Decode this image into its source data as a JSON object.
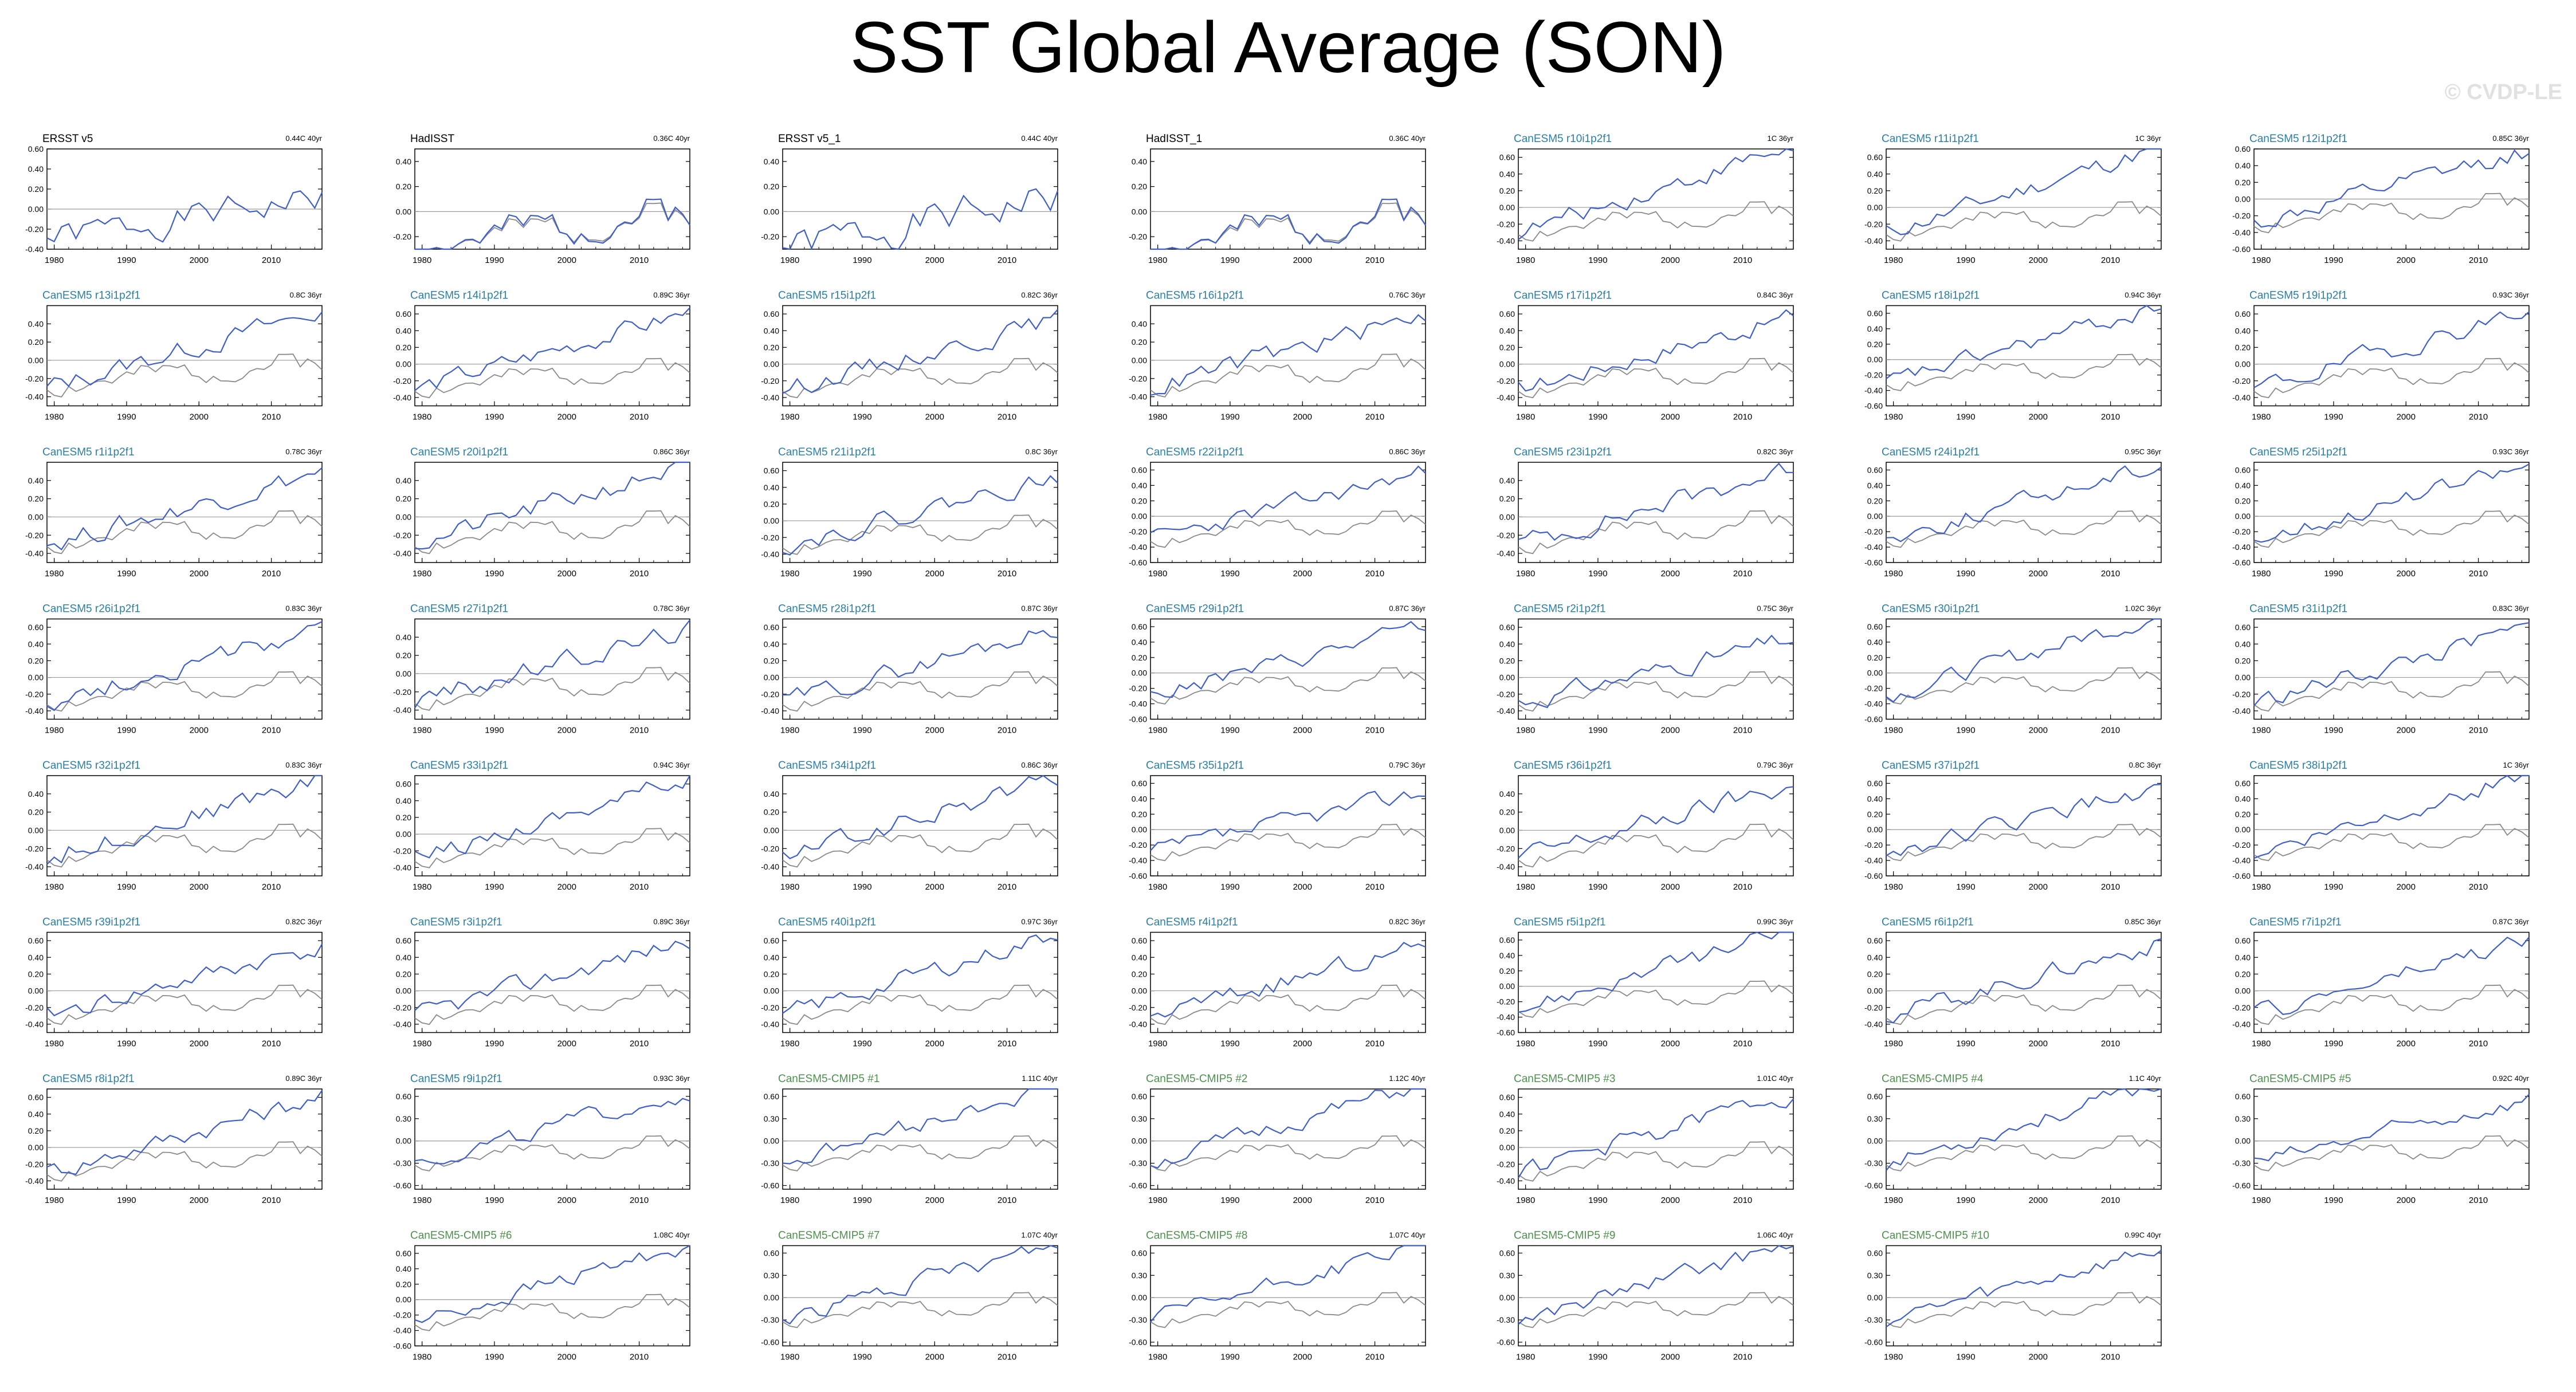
{
  "title": "SST Global Average (SON)",
  "watermark": "© CVDP-LE",
  "colors": {
    "model": "#3f5fc8",
    "obs": "#8a8a8a",
    "zero": "#9a9a9a",
    "title_obs": "#000000",
    "title_le": "#2c7fa4",
    "title_cmip5": "#4f8f4f",
    "axis": "#000000"
  },
  "chart_data": {
    "type": "line",
    "x_ticks": [
      1980,
      1990,
      2000,
      2010
    ],
    "xlim": [
      1979,
      2017
    ],
    "panels": [
      {
        "name": "ERSST v5",
        "trend": "0.44C 40yr",
        "group": "obs",
        "yticks": [
          "0.60",
          "0.40",
          "0.20",
          "0.00",
          "-0.20",
          "-0.40"
        ],
        "ylim": [
          -0.4,
          0.6
        ],
        "seed": 1,
        "slope": 0.011
      },
      {
        "name": "HadISST",
        "trend": "0.36C 40yr",
        "group": "obs",
        "yticks": [
          "0.40",
          "0.20",
          "0.00",
          "-0.20"
        ],
        "ylim": [
          -0.3,
          0.5
        ],
        "seed": 2,
        "slope": 0.009
      },
      {
        "name": "ERSST v5_1",
        "trend": "0.44C 40yr",
        "group": "obs",
        "yticks": [
          "0.40",
          "0.20",
          "0.00",
          "-0.20"
        ],
        "ylim": [
          -0.3,
          0.5
        ],
        "seed": 1,
        "slope": 0.011
      },
      {
        "name": "HadISST_1",
        "trend": "0.36C 40yr",
        "group": "obs",
        "yticks": [
          "0.40",
          "0.20",
          "0.00",
          "-0.20"
        ],
        "ylim": [
          -0.3,
          0.5
        ],
        "seed": 2,
        "slope": 0.009
      },
      {
        "name": "CanESM5 r10i1p2f1",
        "trend": "1C 36yr",
        "group": "le",
        "yticks": [
          "0.60",
          "0.40",
          "0.20",
          "0.00",
          "-0.20",
          "-0.40"
        ],
        "ylim": [
          -0.5,
          0.7
        ],
        "seed": 10,
        "slope": 0.027
      },
      {
        "name": "CanESM5 r11i1p2f1",
        "trend": "1C 36yr",
        "group": "le",
        "yticks": [
          "0.60",
          "0.40",
          "0.20",
          "0.00",
          "-0.20",
          "-0.40"
        ],
        "ylim": [
          -0.5,
          0.7
        ],
        "seed": 11,
        "slope": 0.027
      },
      {
        "name": "CanESM5 r12i1p2f1",
        "trend": "0.85C 36yr",
        "group": "le",
        "yticks": [
          "0.60",
          "0.40",
          "0.20",
          "0.00",
          "-0.20",
          "-0.40",
          "-0.60"
        ],
        "ylim": [
          -0.6,
          0.6
        ],
        "seed": 12,
        "slope": 0.023
      },
      {
        "name": "CanESM5 r13i1p2f1",
        "trend": "0.8C 36yr",
        "group": "le",
        "yticks": [
          "0.40",
          "0.20",
          "0.00",
          "-0.20",
          "-0.40"
        ],
        "ylim": [
          -0.5,
          0.6
        ],
        "seed": 13,
        "slope": 0.022
      },
      {
        "name": "CanESM5 r14i1p2f1",
        "trend": "0.89C 36yr",
        "group": "le",
        "yticks": [
          "0.60",
          "0.40",
          "0.20",
          "0.00",
          "-0.20",
          "-0.40"
        ],
        "ylim": [
          -0.5,
          0.7
        ],
        "seed": 14,
        "slope": 0.024
      },
      {
        "name": "CanESM5 r15i1p2f1",
        "trend": "0.82C 36yr",
        "group": "le",
        "yticks": [
          "0.60",
          "0.40",
          "0.20",
          "0.00",
          "-0.20",
          "-0.40"
        ],
        "ylim": [
          -0.5,
          0.7
        ],
        "seed": 15,
        "slope": 0.022
      },
      {
        "name": "CanESM5 r16i1p2f1",
        "trend": "0.76C 36yr",
        "group": "le",
        "yticks": [
          "0.40",
          "0.20",
          "0.00",
          "-0.20",
          "-0.40"
        ],
        "ylim": [
          -0.5,
          0.6
        ],
        "seed": 16,
        "slope": 0.021
      },
      {
        "name": "CanESM5 r17i1p2f1",
        "trend": "0.84C 36yr",
        "group": "le",
        "yticks": [
          "0.60",
          "0.40",
          "0.20",
          "0.00",
          "-0.20",
          "-0.40"
        ],
        "ylim": [
          -0.5,
          0.7
        ],
        "seed": 17,
        "slope": 0.023
      },
      {
        "name": "CanESM5 r18i1p2f1",
        "trend": "0.94C 36yr",
        "group": "le",
        "yticks": [
          "0.60",
          "0.40",
          "0.20",
          "0.00",
          "-0.20",
          "-0.40",
          "-0.60"
        ],
        "ylim": [
          -0.6,
          0.7
        ],
        "seed": 18,
        "slope": 0.026
      },
      {
        "name": "CanESM5 r19i1p2f1",
        "trend": "0.93C 36yr",
        "group": "le",
        "yticks": [
          "0.60",
          "0.40",
          "0.20",
          "0.00",
          "-0.20",
          "-0.40"
        ],
        "ylim": [
          -0.5,
          0.7
        ],
        "seed": 19,
        "slope": 0.025
      },
      {
        "name": "CanESM5 r1i1p2f1",
        "trend": "0.78C 36yr",
        "group": "le",
        "yticks": [
          "0.40",
          "0.20",
          "0.00",
          "-0.20",
          "-0.40"
        ],
        "ylim": [
          -0.5,
          0.6
        ],
        "seed": 20,
        "slope": 0.021
      },
      {
        "name": "CanESM5 r20i1p2f1",
        "trend": "0.86C 36yr",
        "group": "le",
        "yticks": [
          "0.40",
          "0.20",
          "0.00",
          "-0.20",
          "-0.40"
        ],
        "ylim": [
          -0.5,
          0.6
        ],
        "seed": 21,
        "slope": 0.023
      },
      {
        "name": "CanESM5 r21i1p2f1",
        "trend": "0.8C 36yr",
        "group": "le",
        "yticks": [
          "0.60",
          "0.40",
          "0.20",
          "0.00",
          "-0.20",
          "-0.40"
        ],
        "ylim": [
          -0.5,
          0.7
        ],
        "seed": 22,
        "slope": 0.022
      },
      {
        "name": "CanESM5 r22i1p2f1",
        "trend": "0.86C 36yr",
        "group": "le",
        "yticks": [
          "0.60",
          "0.40",
          "0.20",
          "0.00",
          "-0.20",
          "-0.40",
          "-0.60"
        ],
        "ylim": [
          -0.6,
          0.7
        ],
        "seed": 23,
        "slope": 0.023
      },
      {
        "name": "CanESM5 r23i1p2f1",
        "trend": "0.82C 36yr",
        "group": "le",
        "yticks": [
          "0.40",
          "0.20",
          "0.00",
          "-0.20",
          "-0.40"
        ],
        "ylim": [
          -0.5,
          0.6
        ],
        "seed": 24,
        "slope": 0.022
      },
      {
        "name": "CanESM5 r24i1p2f1",
        "trend": "0.95C 36yr",
        "group": "le",
        "yticks": [
          "0.60",
          "0.40",
          "0.20",
          "0.00",
          "-0.20",
          "-0.40",
          "-0.60"
        ],
        "ylim": [
          -0.6,
          0.7
        ],
        "seed": 25,
        "slope": 0.026
      },
      {
        "name": "CanESM5 r25i1p2f1",
        "trend": "0.93C 36yr",
        "group": "le",
        "yticks": [
          "0.60",
          "0.40",
          "0.20",
          "0.00",
          "-0.20",
          "-0.40",
          "-0.60"
        ],
        "ylim": [
          -0.6,
          0.7
        ],
        "seed": 26,
        "slope": 0.025
      },
      {
        "name": "CanESM5 r26i1p2f1",
        "trend": "0.83C 36yr",
        "group": "le",
        "yticks": [
          "0.60",
          "0.40",
          "0.20",
          "0.00",
          "-0.20",
          "-0.40"
        ],
        "ylim": [
          -0.5,
          0.7
        ],
        "seed": 27,
        "slope": 0.023
      },
      {
        "name": "CanESM5 r27i1p2f1",
        "trend": "0.78C 36yr",
        "group": "le",
        "yticks": [
          "0.40",
          "0.20",
          "0.00",
          "-0.20",
          "-0.40"
        ],
        "ylim": [
          -0.5,
          0.6
        ],
        "seed": 28,
        "slope": 0.021
      },
      {
        "name": "CanESM5 r28i1p2f1",
        "trend": "0.87C 36yr",
        "group": "le",
        "yticks": [
          "0.60",
          "0.40",
          "0.20",
          "0.00",
          "-0.20",
          "-0.40"
        ],
        "ylim": [
          -0.5,
          0.7
        ],
        "seed": 29,
        "slope": 0.024
      },
      {
        "name": "CanESM5 r29i1p2f1",
        "trend": "0.87C 36yr",
        "group": "le",
        "yticks": [
          "0.60",
          "0.40",
          "0.20",
          "0.00",
          "-0.20",
          "-0.40",
          "-0.60"
        ],
        "ylim": [
          -0.6,
          0.7
        ],
        "seed": 30,
        "slope": 0.024
      },
      {
        "name": "CanESM5 r2i1p2f1",
        "trend": "0.75C 36yr",
        "group": "le",
        "yticks": [
          "0.60",
          "0.40",
          "0.20",
          "0.00",
          "-0.20",
          "-0.40"
        ],
        "ylim": [
          -0.5,
          0.7
        ],
        "seed": 31,
        "slope": 0.02
      },
      {
        "name": "CanESM5 r30i1p2f1",
        "trend": "1.02C 36yr",
        "group": "le",
        "yticks": [
          "0.60",
          "0.40",
          "0.20",
          "0.00",
          "-0.20",
          "-0.40",
          "-0.60"
        ],
        "ylim": [
          -0.6,
          0.7
        ],
        "seed": 32,
        "slope": 0.028
      },
      {
        "name": "CanESM5 r31i1p2f1",
        "trend": "0.83C 36yr",
        "group": "le",
        "yticks": [
          "0.60",
          "0.40",
          "0.20",
          "0.00",
          "-0.20",
          "-0.40"
        ],
        "ylim": [
          -0.5,
          0.7
        ],
        "seed": 33,
        "slope": 0.023
      },
      {
        "name": "CanESM5 r32i1p2f1",
        "trend": "0.83C 36yr",
        "group": "le",
        "yticks": [
          "0.40",
          "0.20",
          "0.00",
          "-0.20",
          "-0.40"
        ],
        "ylim": [
          -0.5,
          0.6
        ],
        "seed": 34,
        "slope": 0.023
      },
      {
        "name": "CanESM5 r33i1p2f1",
        "trend": "0.94C 36yr",
        "group": "le",
        "yticks": [
          "0.60",
          "0.40",
          "0.20",
          "0.00",
          "-0.20",
          "-0.40"
        ],
        "ylim": [
          -0.5,
          0.7
        ],
        "seed": 35,
        "slope": 0.026
      },
      {
        "name": "CanESM5 r34i1p2f1",
        "trend": "0.86C 36yr",
        "group": "le",
        "yticks": [
          "0.40",
          "0.20",
          "0.00",
          "-0.20",
          "-0.40"
        ],
        "ylim": [
          -0.5,
          0.6
        ],
        "seed": 36,
        "slope": 0.023
      },
      {
        "name": "CanESM5 r35i1p2f1",
        "trend": "0.79C 36yr",
        "group": "le",
        "yticks": [
          "0.60",
          "0.40",
          "0.20",
          "0.00",
          "-0.20",
          "-0.40",
          "-0.60"
        ],
        "ylim": [
          -0.6,
          0.7
        ],
        "seed": 37,
        "slope": 0.021
      },
      {
        "name": "CanESM5 r36i1p2f1",
        "trend": "0.79C 36yr",
        "group": "le",
        "yticks": [
          "0.40",
          "0.20",
          "0.00",
          "-0.20",
          "-0.40"
        ],
        "ylim": [
          -0.5,
          0.6
        ],
        "seed": 38,
        "slope": 0.021
      },
      {
        "name": "CanESM5 r37i1p2f1",
        "trend": "0.8C 36yr",
        "group": "le",
        "yticks": [
          "0.60",
          "0.40",
          "0.20",
          "0.00",
          "-0.20",
          "-0.40",
          "-0.60"
        ],
        "ylim": [
          -0.6,
          0.7
        ],
        "seed": 39,
        "slope": 0.022
      },
      {
        "name": "CanESM5 r38i1p2f1",
        "trend": "1C 36yr",
        "group": "le",
        "yticks": [
          "0.60",
          "0.40",
          "0.20",
          "0.00",
          "-0.20",
          "-0.40",
          "-0.60"
        ],
        "ylim": [
          -0.6,
          0.7
        ],
        "seed": 40,
        "slope": 0.027
      },
      {
        "name": "CanESM5 r39i1p2f1",
        "trend": "0.82C 36yr",
        "group": "le",
        "yticks": [
          "0.60",
          "0.40",
          "0.20",
          "0.00",
          "-0.20",
          "-0.40"
        ],
        "ylim": [
          -0.5,
          0.7
        ],
        "seed": 41,
        "slope": 0.022
      },
      {
        "name": "CanESM5 r3i1p2f1",
        "trend": "0.89C 36yr",
        "group": "le",
        "yticks": [
          "0.60",
          "0.40",
          "0.20",
          "0.00",
          "-0.20",
          "-0.40"
        ],
        "ylim": [
          -0.5,
          0.7
        ],
        "seed": 42,
        "slope": 0.024
      },
      {
        "name": "CanESM5 r40i1p2f1",
        "trend": "0.97C 36yr",
        "group": "le",
        "yticks": [
          "0.60",
          "0.40",
          "0.20",
          "0.00",
          "-0.20",
          "-0.40"
        ],
        "ylim": [
          -0.5,
          0.7
        ],
        "seed": 43,
        "slope": 0.026
      },
      {
        "name": "CanESM5 r4i1p2f1",
        "trend": "0.82C 36yr",
        "group": "le",
        "yticks": [
          "0.60",
          "0.40",
          "0.20",
          "0.00",
          "-0.20",
          "-0.40"
        ],
        "ylim": [
          -0.5,
          0.7
        ],
        "seed": 44,
        "slope": 0.022
      },
      {
        "name": "CanESM5 r5i1p2f1",
        "trend": "0.99C 36yr",
        "group": "le",
        "yticks": [
          "0.60",
          "0.40",
          "0.20",
          "0.00",
          "-0.20",
          "-0.40",
          "-0.60"
        ],
        "ylim": [
          -0.6,
          0.7
        ],
        "seed": 45,
        "slope": 0.027
      },
      {
        "name": "CanESM5 r6i1p2f1",
        "trend": "0.85C 36yr",
        "group": "le",
        "yticks": [
          "0.60",
          "0.40",
          "0.20",
          "0.00",
          "-0.20",
          "-0.40"
        ],
        "ylim": [
          -0.5,
          0.7
        ],
        "seed": 46,
        "slope": 0.023
      },
      {
        "name": "CanESM5 r7i1p2f1",
        "trend": "0.87C 36yr",
        "group": "le",
        "yticks": [
          "0.60",
          "0.40",
          "0.20",
          "0.00",
          "-0.20",
          "-0.40"
        ],
        "ylim": [
          -0.5,
          0.7
        ],
        "seed": 47,
        "slope": 0.024
      },
      {
        "name": "CanESM5 r8i1p2f1",
        "trend": "0.89C 36yr",
        "group": "le",
        "yticks": [
          "0.60",
          "0.40",
          "0.20",
          "0.00",
          "-0.20",
          "-0.40"
        ],
        "ylim": [
          -0.5,
          0.7
        ],
        "seed": 48,
        "slope": 0.024
      },
      {
        "name": "CanESM5 r9i1p2f1",
        "trend": "0.93C 36yr",
        "group": "le",
        "yticks": [
          "0.60",
          "0.30",
          "0.00",
          "-0.30",
          "-0.60"
        ],
        "ylim": [
          -0.65,
          0.7
        ],
        "seed": 49,
        "slope": 0.025
      },
      {
        "name": "CanESM5-CMIP5 #1",
        "trend": "1.11C 40yr",
        "group": "cmip5",
        "yticks": [
          "0.60",
          "0.30",
          "0.00",
          "-0.30",
          "-0.60"
        ],
        "ylim": [
          -0.65,
          0.7
        ],
        "seed": 50,
        "slope": 0.028
      },
      {
        "name": "CanESM5-CMIP5 #2",
        "trend": "1.12C 40yr",
        "group": "cmip5",
        "yticks": [
          "0.60",
          "0.30",
          "0.00",
          "-0.30",
          "-0.60"
        ],
        "ylim": [
          -0.65,
          0.7
        ],
        "seed": 51,
        "slope": 0.028
      },
      {
        "name": "CanESM5-CMIP5 #3",
        "trend": "1.01C 40yr",
        "group": "cmip5",
        "yticks": [
          "0.60",
          "0.40",
          "0.20",
          "0.00",
          "-0.20",
          "-0.40"
        ],
        "ylim": [
          -0.5,
          0.7
        ],
        "seed": 52,
        "slope": 0.025
      },
      {
        "name": "CanESM5-CMIP5 #4",
        "trend": "1.1C 40yr",
        "group": "cmip5",
        "yticks": [
          "0.60",
          "0.30",
          "0.00",
          "-0.30",
          "-0.60"
        ],
        "ylim": [
          -0.65,
          0.7
        ],
        "seed": 53,
        "slope": 0.028
      },
      {
        "name": "CanESM5-CMIP5 #5",
        "trend": "0.92C 40yr",
        "group": "cmip5",
        "yticks": [
          "0.60",
          "0.30",
          "0.00",
          "-0.30",
          "-0.60"
        ],
        "ylim": [
          -0.65,
          0.7
        ],
        "seed": 54,
        "slope": 0.023
      },
      {
        "name": "CanESM5-CMIP5 #6",
        "trend": "1.08C 40yr",
        "group": "cmip5",
        "yticks": [
          "0.60",
          "0.40",
          "0.20",
          "0.00",
          "-0.20",
          "-0.40",
          "-0.60"
        ],
        "ylim": [
          -0.6,
          0.7
        ],
        "seed": 55,
        "slope": 0.027
      },
      {
        "name": "CanESM5-CMIP5 #7",
        "trend": "1.07C 40yr",
        "group": "cmip5",
        "yticks": [
          "0.60",
          "0.30",
          "0.00",
          "-0.30",
          "-0.60"
        ],
        "ylim": [
          -0.65,
          0.7
        ],
        "seed": 56,
        "slope": 0.027
      },
      {
        "name": "CanESM5-CMIP5 #8",
        "trend": "1.07C 40yr",
        "group": "cmip5",
        "yticks": [
          "0.60",
          "0.30",
          "0.00",
          "-0.30",
          "-0.60"
        ],
        "ylim": [
          -0.65,
          0.7
        ],
        "seed": 57,
        "slope": 0.027
      },
      {
        "name": "CanESM5-CMIP5 #9",
        "trend": "1.06C 40yr",
        "group": "cmip5",
        "yticks": [
          "0.60",
          "0.30",
          "0.00",
          "-0.30",
          "-0.60"
        ],
        "ylim": [
          -0.65,
          0.7
        ],
        "seed": 58,
        "slope": 0.027
      },
      {
        "name": "CanESM5-CMIP5 #10",
        "trend": "0.99C 40yr",
        "group": "cmip5",
        "yticks": [
          "0.60",
          "0.30",
          "0.00",
          "-0.30",
          "-0.60"
        ],
        "ylim": [
          -0.65,
          0.7
        ],
        "seed": 59,
        "slope": 0.025
      }
    ]
  }
}
